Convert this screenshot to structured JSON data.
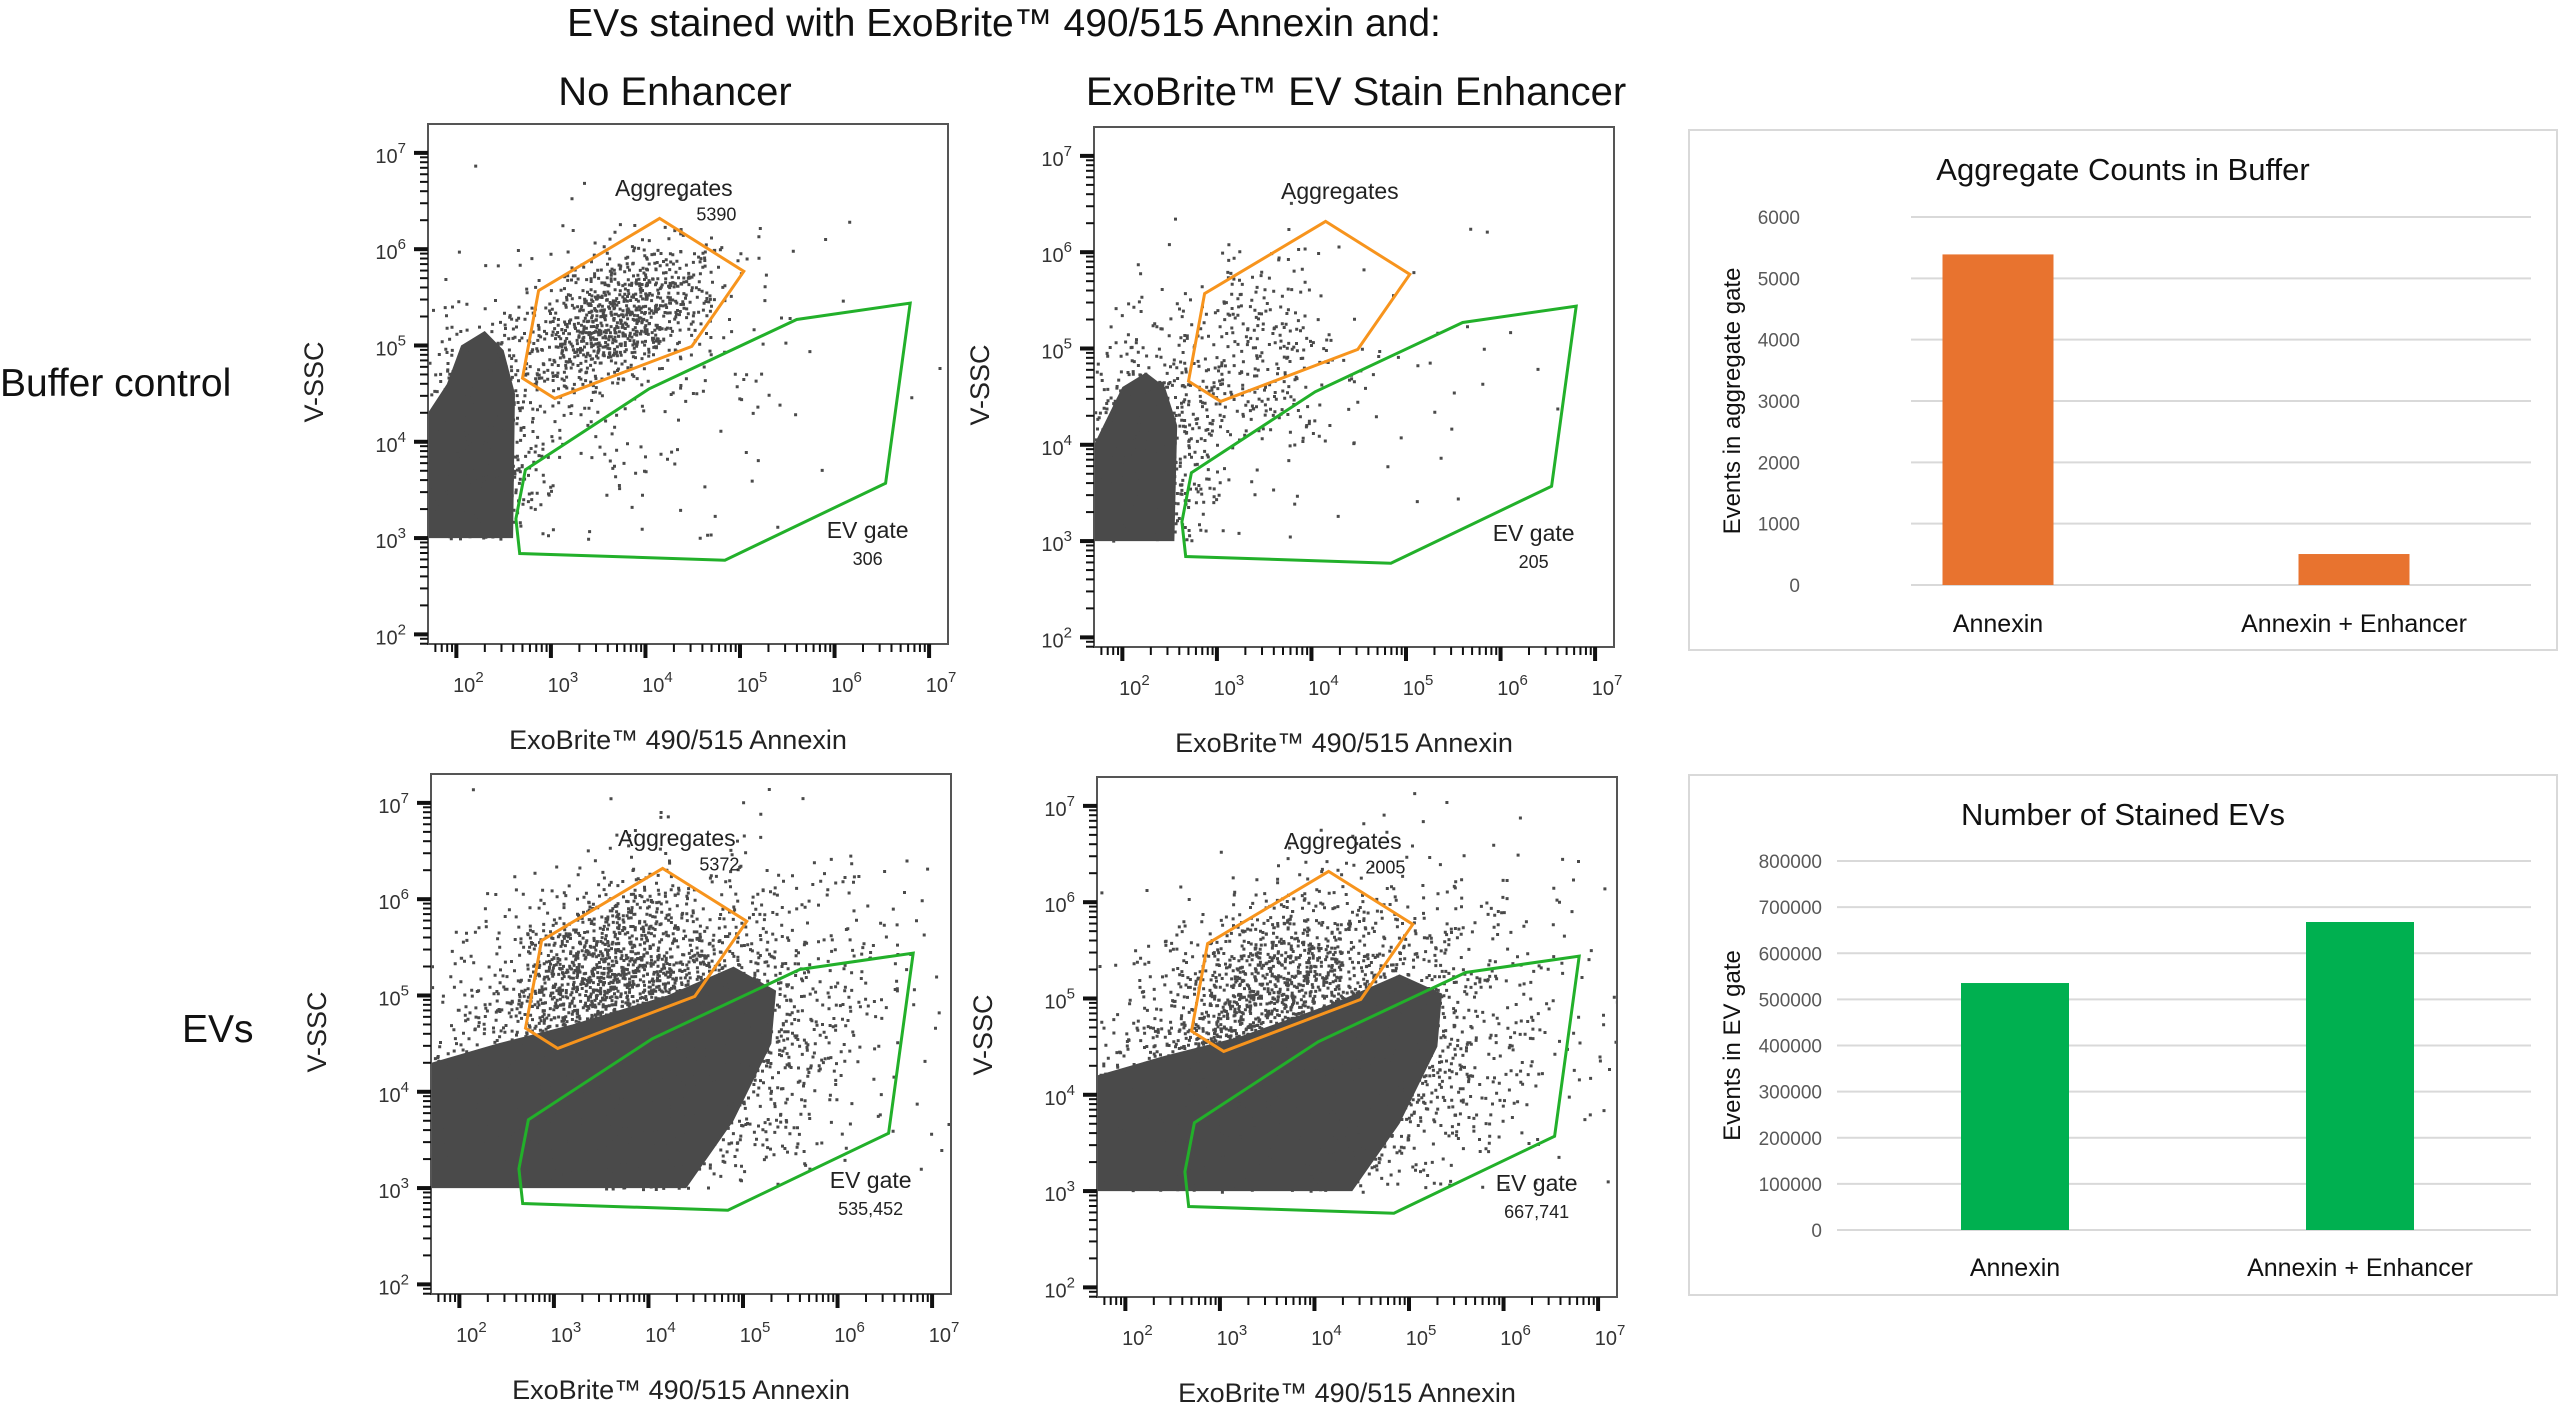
{
  "figure": {
    "title": "EVs stained with ExoBrite™ 490/515 Annexin and:",
    "column_titles": [
      "No Enhancer",
      "ExoBrite™ EV Stain Enhancer"
    ],
    "row_titles": [
      "Buffer control",
      "EVs"
    ]
  },
  "colors": {
    "aggregate_gate": "#F7941D",
    "ev_gate": "#22B02A",
    "events": "#4a4a4a",
    "bar_aggregates": "#E8732F",
    "bar_evs": "#00B050",
    "gridline": "#d9d9d9"
  },
  "chart_data": [
    {
      "type": "scatter",
      "panel": "Buffer control / No Enhancer",
      "xlabel": "ExoBrite™ 490/515 Annexin",
      "ylabel": "V-SSC",
      "xscale": "log",
      "yscale": "log",
      "xlim_log10": [
        1.7,
        7.2
      ],
      "ylim_log10": [
        1.9,
        7.3
      ],
      "xticks": [
        "2",
        "3",
        "4",
        "5",
        "6",
        "7"
      ],
      "yticks": [
        "2",
        "3",
        "4",
        "5",
        "6",
        "7"
      ],
      "gates": [
        {
          "name": "Aggregates",
          "count": "5390",
          "color": "#F7941D",
          "vertices_log10": [
            [
              2.7,
              4.66
            ],
            [
              2.87,
              5.57
            ],
            [
              4.15,
              6.32
            ],
            [
              5.04,
              5.77
            ],
            [
              4.49,
              4.99
            ],
            [
              3.04,
              4.45
            ]
          ]
        },
        {
          "name": "EV gate",
          "count": "306",
          "color": "#22B02A",
          "vertices_log10": [
            [
              2.73,
              3.71
            ],
            [
              4.04,
              4.55
            ],
            [
              5.6,
              5.27
            ],
            [
              6.8,
              5.44
            ],
            [
              6.54,
              3.57
            ],
            [
              4.84,
              2.77
            ],
            [
              2.67,
              2.84
            ],
            [
              2.63,
              3.2
            ]
          ]
        }
      ]
    },
    {
      "type": "scatter",
      "panel": "Buffer control / ExoBrite™ EV Stain Enhancer",
      "xlabel": "ExoBrite™ 490/515 Annexin",
      "ylabel": "V-SSC",
      "xscale": "log",
      "yscale": "log",
      "xlim_log10": [
        1.7,
        7.2
      ],
      "ylim_log10": [
        1.9,
        7.3
      ],
      "xticks": [
        "2",
        "3",
        "4",
        "5",
        "6",
        "7"
      ],
      "yticks": [
        "2",
        "3",
        "4",
        "5",
        "6",
        "7"
      ],
      "gates": [
        {
          "name": "Aggregates",
          "count": "",
          "color": "#F7941D",
          "vertices_log10": [
            [
              2.7,
              4.66
            ],
            [
              2.87,
              5.57
            ],
            [
              4.15,
              6.32
            ],
            [
              5.04,
              5.77
            ],
            [
              4.49,
              4.99
            ],
            [
              3.04,
              4.45
            ]
          ]
        },
        {
          "name": "EV gate",
          "count": "205",
          "color": "#22B02A",
          "vertices_log10": [
            [
              2.73,
              3.71
            ],
            [
              4.04,
              4.55
            ],
            [
              5.6,
              5.27
            ],
            [
              6.8,
              5.44
            ],
            [
              6.54,
              3.57
            ],
            [
              4.84,
              2.77
            ],
            [
              2.67,
              2.84
            ],
            [
              2.63,
              3.2
            ]
          ]
        }
      ]
    },
    {
      "type": "scatter",
      "panel": "EVs / No Enhancer",
      "xlabel": "ExoBrite™ 490/515 Annexin",
      "ylabel": "V-SSC",
      "xscale": "log",
      "yscale": "log",
      "xlim_log10": [
        1.7,
        7.2
      ],
      "ylim_log10": [
        1.9,
        7.3
      ],
      "xticks": [
        "2",
        "3",
        "4",
        "5",
        "6",
        "7"
      ],
      "yticks": [
        "2",
        "3",
        "4",
        "5",
        "6",
        "7"
      ],
      "gates": [
        {
          "name": "Aggregates",
          "count": "5372",
          "color": "#F7941D",
          "vertices_log10": [
            [
              2.7,
              4.66
            ],
            [
              2.87,
              5.57
            ],
            [
              4.15,
              6.32
            ],
            [
              5.04,
              5.77
            ],
            [
              4.49,
              4.99
            ],
            [
              3.04,
              4.45
            ]
          ]
        },
        {
          "name": "EV gate",
          "count": "535,452",
          "color": "#22B02A",
          "vertices_log10": [
            [
              2.73,
              3.71
            ],
            [
              4.04,
              4.55
            ],
            [
              5.6,
              5.27
            ],
            [
              6.8,
              5.44
            ],
            [
              6.54,
              3.57
            ],
            [
              4.84,
              2.77
            ],
            [
              2.67,
              2.84
            ],
            [
              2.63,
              3.2
            ]
          ]
        }
      ]
    },
    {
      "type": "scatter",
      "panel": "EVs / ExoBrite™ EV Stain Enhancer",
      "xlabel": "ExoBrite™ 490/515 Annexin",
      "ylabel": "V-SSC",
      "xscale": "log",
      "yscale": "log",
      "xlim_log10": [
        1.7,
        7.2
      ],
      "ylim_log10": [
        1.9,
        7.3
      ],
      "xticks": [
        "2",
        "3",
        "4",
        "5",
        "6",
        "7"
      ],
      "yticks": [
        "2",
        "3",
        "4",
        "5",
        "6",
        "7"
      ],
      "gates": [
        {
          "name": "Aggregates",
          "count": "2005",
          "color": "#F7941D",
          "vertices_log10": [
            [
              2.7,
              4.66
            ],
            [
              2.87,
              5.57
            ],
            [
              4.15,
              6.32
            ],
            [
              5.04,
              5.77
            ],
            [
              4.49,
              4.99
            ],
            [
              3.04,
              4.45
            ]
          ]
        },
        {
          "name": "EV gate",
          "count": "667,741",
          "color": "#22B02A",
          "vertices_log10": [
            [
              2.73,
              3.71
            ],
            [
              4.04,
              4.55
            ],
            [
              5.6,
              5.27
            ],
            [
              6.8,
              5.44
            ],
            [
              6.54,
              3.57
            ],
            [
              4.84,
              2.77
            ],
            [
              2.67,
              2.84
            ],
            [
              2.63,
              3.2
            ]
          ]
        }
      ]
    },
    {
      "type": "bar",
      "title": "Aggregate Counts in Buffer",
      "ylabel": "Events in aggregate gate",
      "categories": [
        "Annexin",
        "Annexin + Enhancer"
      ],
      "values": [
        5390,
        505
      ],
      "ylim": [
        0,
        6000
      ],
      "yticks": [
        0,
        1000,
        2000,
        3000,
        4000,
        5000,
        6000
      ],
      "color": "#E8732F",
      "grid": true
    },
    {
      "type": "bar",
      "title": "Number of Stained EVs",
      "ylabel": "Events in EV gate",
      "categories": [
        "Annexin",
        "Annexin + Enhancer"
      ],
      "values": [
        535452,
        667741
      ],
      "ylim": [
        0,
        800000
      ],
      "yticks": [
        0,
        100000,
        200000,
        300000,
        400000,
        500000,
        600000,
        700000,
        800000
      ],
      "color": "#00B050",
      "grid": true
    }
  ]
}
